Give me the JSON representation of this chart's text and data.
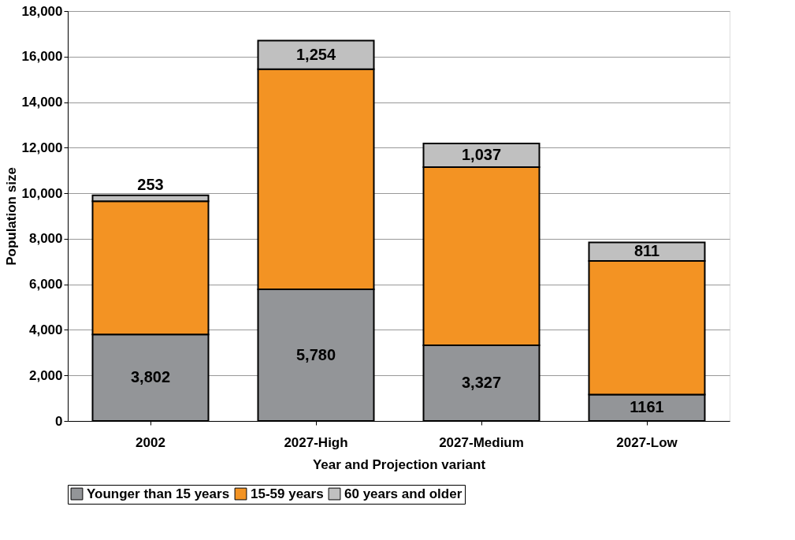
{
  "chart_data": {
    "type": "bar",
    "stacked": true,
    "xlabel": "Year and Projection variant",
    "ylabel": "Population size",
    "categories": [
      "2002",
      "2027-High",
      "2027-Medium",
      "2027-Low"
    ],
    "series": [
      {
        "name": "Younger than 15 years",
        "color": "#939598",
        "values": [
          3802,
          5780,
          3327,
          1161
        ],
        "value_labels": [
          "3,802",
          "5,780",
          "3,327",
          "1161"
        ]
      },
      {
        "name": "15-59 years",
        "color": "#f39323",
        "values": [
          5850,
          9670,
          7820,
          5870
        ],
        "value_labels": [
          null,
          null,
          null,
          null
        ]
      },
      {
        "name": "60 years and older",
        "color": "#c0c0c0",
        "values": [
          253,
          1254,
          1037,
          811
        ],
        "value_labels": [
          "253",
          "1,254",
          "1,037",
          "811"
        ]
      }
    ],
    "ylim": [
      0,
      18000
    ],
    "yticks": [
      {
        "value": 0,
        "label": "0"
      },
      {
        "value": 2000,
        "label": "2,000"
      },
      {
        "value": 4000,
        "label": "4,000"
      },
      {
        "value": 6000,
        "label": "6,000"
      },
      {
        "value": 8000,
        "label": "8,000"
      },
      {
        "value": 10000,
        "label": "10,000"
      },
      {
        "value": 12000,
        "label": "12,000"
      },
      {
        "value": 14000,
        "label": "14,000"
      },
      {
        "value": 16000,
        "label": "16,000"
      },
      {
        "value": 18000,
        "label": "18,000"
      }
    ],
    "grid": "y",
    "legend": "bottom"
  }
}
